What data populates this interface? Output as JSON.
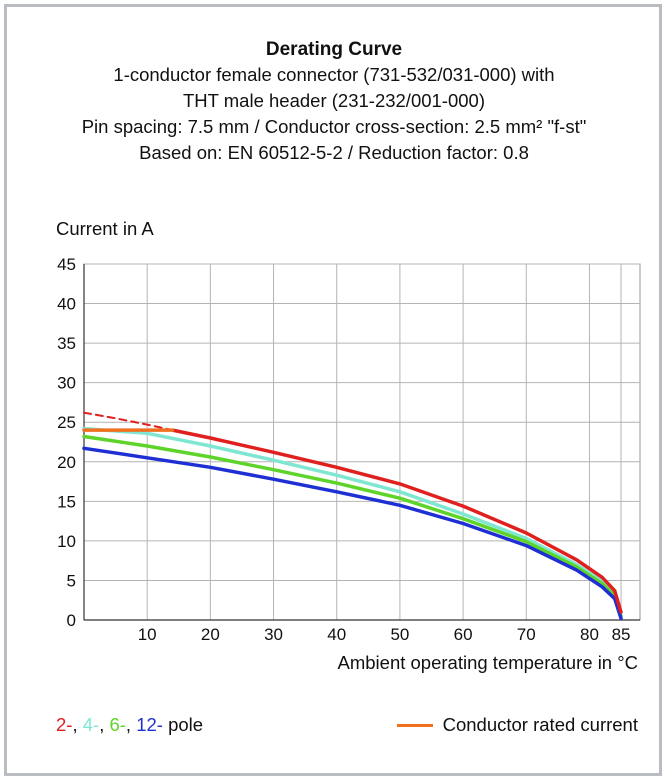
{
  "chart_data": {
    "type": "line",
    "title": "Derating Curve",
    "subtitle_lines": [
      "1-conductor female connector (731-532/031-000) with",
      "THT male header (231-232/001-000)",
      "Pin spacing: 7.5 mm / Conductor cross-section: 2.5 mm² \"f-st\"",
      "Based on: EN 60512-5-2 / Reduction factor: 0.8"
    ],
    "ylabel": "Current in A",
    "xlabel": "Ambient operating temperature in °C",
    "xlim": [
      0,
      88
    ],
    "ylim": [
      0,
      45
    ],
    "xticks": [
      10,
      20,
      30,
      40,
      50,
      60,
      70,
      80,
      85
    ],
    "yticks": [
      0,
      5,
      10,
      15,
      20,
      25,
      30,
      35,
      40,
      45
    ],
    "grid": true,
    "series": [
      {
        "name": "2-",
        "color": "#e0201e",
        "x": [
          14,
          20,
          30,
          40,
          50,
          60,
          70,
          78,
          82,
          84,
          85
        ],
        "y": [
          24.0,
          23.0,
          21.2,
          19.3,
          17.2,
          14.4,
          11.0,
          7.6,
          5.4,
          3.7,
          1.0
        ]
      },
      {
        "name": "2- (dashed)",
        "color": "#e0201e",
        "dashed": true,
        "x": [
          0,
          5,
          10,
          14
        ],
        "y": [
          26.2,
          25.5,
          24.7,
          24.0
        ]
      },
      {
        "name": "4-",
        "color": "#7fe6d2",
        "x": [
          0,
          10,
          20,
          30,
          40,
          50,
          60,
          70,
          78,
          82,
          84,
          85
        ],
        "y": [
          24.2,
          23.6,
          22.0,
          20.2,
          18.3,
          16.2,
          13.4,
          10.3,
          7.0,
          4.9,
          3.4,
          1.0
        ]
      },
      {
        "name": "6-",
        "color": "#5ed42a",
        "x": [
          0,
          10,
          20,
          30,
          40,
          50,
          60,
          70,
          78,
          82,
          84,
          85
        ],
        "y": [
          23.2,
          22.0,
          20.6,
          19.0,
          17.3,
          15.4,
          12.8,
          9.9,
          6.7,
          4.6,
          3.1,
          0.5
        ]
      },
      {
        "name": "12-",
        "color": "#1e2fd4",
        "x": [
          0,
          10,
          20,
          30,
          40,
          50,
          60,
          70,
          78,
          82,
          84,
          85
        ],
        "y": [
          21.7,
          20.5,
          19.3,
          17.8,
          16.2,
          14.5,
          12.2,
          9.4,
          6.3,
          4.2,
          2.7,
          0.2
        ]
      },
      {
        "name": "Conductor rated current",
        "color": "#f07020",
        "x": [
          0,
          14
        ],
        "y": [
          24.0,
          24.0
        ]
      }
    ],
    "legend": {
      "poles": [
        {
          "text": "2-",
          "color": "#e0201e"
        },
        {
          "text": ", ",
          "color": "#111111"
        },
        {
          "text": "4-",
          "color": "#7fe6d2"
        },
        {
          "text": ", ",
          "color": "#111111"
        },
        {
          "text": "6-",
          "color": "#5ed42a"
        },
        {
          "text": ", ",
          "color": "#111111"
        },
        {
          "text": "12-",
          "color": "#1e2fd4"
        },
        {
          "text": " pole",
          "color": "#111111"
        }
      ],
      "rated_label": "Conductor rated current",
      "position": "bottom"
    }
  }
}
